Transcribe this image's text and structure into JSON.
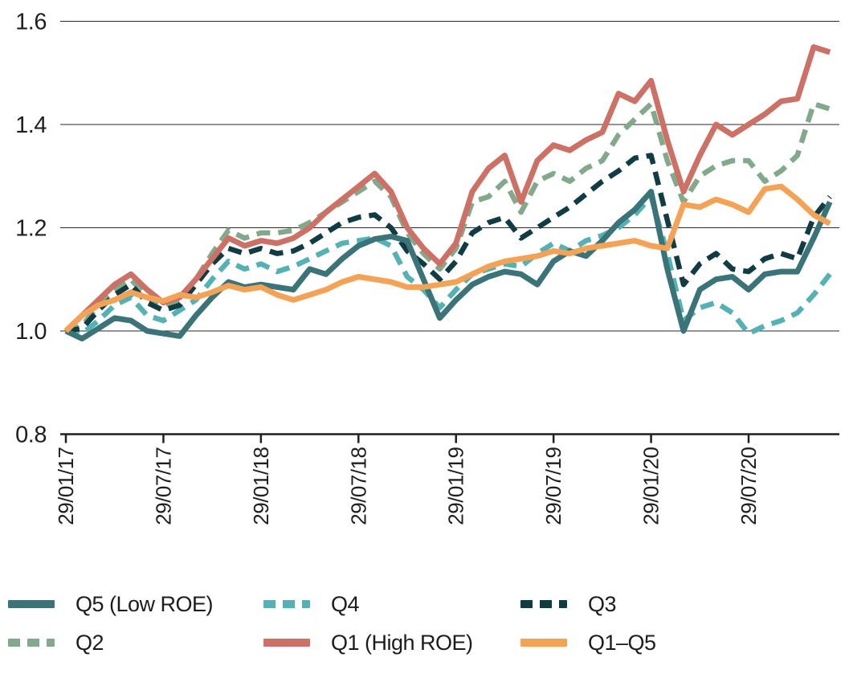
{
  "chart_data": {
    "type": "line",
    "title": "",
    "xlabel": "",
    "ylabel": "",
    "ylim": [
      0.8,
      1.6
    ],
    "y_ticks": [
      0.8,
      1.0,
      1.2,
      1.4,
      1.6
    ],
    "y_tick_labels": [
      "0.8",
      "1.0",
      "1.2",
      "1.4",
      "1.6"
    ],
    "x_tick_labels": [
      "29/01/17",
      "29/07/17",
      "29/01/18",
      "29/07/18",
      "29/01/19",
      "29/07/19",
      "29/01/20",
      "29/07/20"
    ],
    "x_tick_month_indices": [
      0,
      6,
      12,
      18,
      24,
      30,
      36,
      42
    ],
    "x_unit": "months since 29/01/17, one point per month",
    "n_points": 48,
    "grid": "horizontal",
    "legend_position": "bottom",
    "axis_color": "#1f1f1f",
    "series": [
      {
        "name": "Q5 (Low ROE)",
        "color": "#3a7478",
        "dash": "solid",
        "values": [
          1.0,
          0.985,
          1.005,
          1.025,
          1.02,
          1.0,
          0.995,
          0.99,
          1.03,
          1.065,
          1.095,
          1.085,
          1.09,
          1.085,
          1.08,
          1.12,
          1.11,
          1.14,
          1.165,
          1.178,
          1.183,
          1.175,
          1.1,
          1.025,
          1.06,
          1.09,
          1.105,
          1.115,
          1.11,
          1.09,
          1.135,
          1.155,
          1.145,
          1.175,
          1.21,
          1.235,
          1.27,
          1.12,
          1.0,
          1.08,
          1.1,
          1.105,
          1.08,
          1.11,
          1.115,
          1.115,
          1.18,
          1.25
        ]
      },
      {
        "name": "Q4",
        "color": "#54b2b4",
        "dash": "dashed",
        "values": [
          1.0,
          0.995,
          1.02,
          1.05,
          1.065,
          1.03,
          1.02,
          1.04,
          1.06,
          1.1,
          1.135,
          1.12,
          1.13,
          1.115,
          1.125,
          1.14,
          1.155,
          1.17,
          1.175,
          1.18,
          1.165,
          1.105,
          1.08,
          1.045,
          1.08,
          1.11,
          1.12,
          1.13,
          1.125,
          1.15,
          1.17,
          1.155,
          1.175,
          1.185,
          1.2,
          1.225,
          1.26,
          1.15,
          1.02,
          1.045,
          1.055,
          1.035,
          0.995,
          1.01,
          1.02,
          1.035,
          1.07,
          1.11
        ]
      },
      {
        "name": "Q3",
        "color": "#123c43",
        "dash": "dashed",
        "values": [
          1.0,
          1.005,
          1.04,
          1.07,
          1.09,
          1.055,
          1.04,
          1.05,
          1.09,
          1.13,
          1.16,
          1.15,
          1.16,
          1.15,
          1.155,
          1.17,
          1.19,
          1.21,
          1.22,
          1.225,
          1.2,
          1.155,
          1.13,
          1.1,
          1.135,
          1.19,
          1.21,
          1.22,
          1.18,
          1.2,
          1.22,
          1.24,
          1.265,
          1.29,
          1.31,
          1.335,
          1.34,
          1.215,
          1.09,
          1.13,
          1.15,
          1.12,
          1.115,
          1.14,
          1.15,
          1.14,
          1.22,
          1.26
        ]
      },
      {
        "name": "Q2",
        "color": "#83a98c",
        "dash": "dashed",
        "values": [
          1.0,
          1.01,
          1.05,
          1.08,
          1.1,
          1.065,
          1.05,
          1.06,
          1.1,
          1.15,
          1.195,
          1.18,
          1.19,
          1.19,
          1.195,
          1.21,
          1.23,
          1.25,
          1.27,
          1.29,
          1.26,
          1.19,
          1.15,
          1.12,
          1.16,
          1.25,
          1.26,
          1.29,
          1.23,
          1.29,
          1.305,
          1.29,
          1.315,
          1.33,
          1.38,
          1.41,
          1.44,
          1.33,
          1.25,
          1.3,
          1.32,
          1.33,
          1.33,
          1.29,
          1.31,
          1.34,
          1.44,
          1.43
        ]
      },
      {
        "name": "Q1 (High ROE)",
        "color": "#cd7065",
        "dash": "solid",
        "values": [
          1.0,
          1.03,
          1.06,
          1.09,
          1.11,
          1.08,
          1.055,
          1.065,
          1.1,
          1.14,
          1.18,
          1.165,
          1.175,
          1.17,
          1.18,
          1.2,
          1.23,
          1.255,
          1.28,
          1.305,
          1.27,
          1.2,
          1.16,
          1.13,
          1.17,
          1.27,
          1.315,
          1.34,
          1.25,
          1.33,
          1.36,
          1.35,
          1.37,
          1.385,
          1.46,
          1.445,
          1.485,
          1.37,
          1.27,
          1.34,
          1.4,
          1.38,
          1.4,
          1.42,
          1.445,
          1.45,
          1.55,
          1.54
        ]
      },
      {
        "name": "Q1–Q5",
        "color": "#f4a356",
        "dash": "solid",
        "values": [
          1.0,
          1.03,
          1.05,
          1.06,
          1.075,
          1.065,
          1.058,
          1.07,
          1.065,
          1.075,
          1.088,
          1.08,
          1.085,
          1.07,
          1.06,
          1.07,
          1.08,
          1.095,
          1.105,
          1.1,
          1.095,
          1.085,
          1.085,
          1.09,
          1.095,
          1.11,
          1.125,
          1.135,
          1.14,
          1.145,
          1.155,
          1.15,
          1.16,
          1.165,
          1.17,
          1.175,
          1.165,
          1.16,
          1.245,
          1.24,
          1.255,
          1.245,
          1.23,
          1.275,
          1.28,
          1.255,
          1.225,
          1.208
        ]
      }
    ]
  }
}
